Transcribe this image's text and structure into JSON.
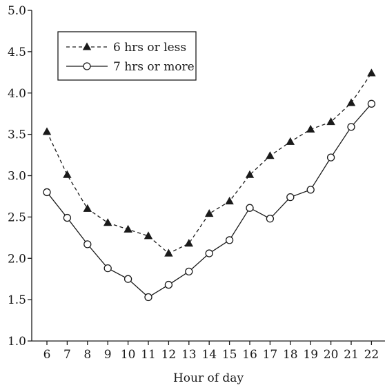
{
  "chart_data": {
    "type": "line",
    "title": "",
    "xlabel": "Hour of day",
    "ylabel": "",
    "x": [
      6,
      7,
      8,
      9,
      10,
      11,
      12,
      13,
      14,
      15,
      16,
      17,
      18,
      19,
      20,
      21,
      22
    ],
    "xlim": [
      5.5,
      22.2
    ],
    "ylim": [
      1.0,
      5.0
    ],
    "yticks": [
      1.0,
      1.5,
      2.0,
      2.5,
      3.0,
      3.5,
      4.0,
      4.5,
      5.0
    ],
    "ytick_labels": [
      "1.0",
      "1.5",
      "2.0",
      "2.5",
      "3.0",
      "3.5",
      "4.0",
      "4.5",
      "5.0"
    ],
    "xtick_labels": [
      "6",
      "7",
      "8",
      "9",
      "10",
      "11",
      "12",
      "13",
      "14",
      "15",
      "16",
      "17",
      "18",
      "19",
      "20",
      "21",
      "22"
    ],
    "grid": false,
    "legend_position": "top-left",
    "series": [
      {
        "name": "6 hrs or less",
        "line_style": "dashed",
        "marker": "filled-triangle",
        "color": "#1a1a1a",
        "values": [
          3.53,
          3.01,
          2.6,
          2.43,
          2.35,
          2.27,
          2.06,
          2.18,
          2.54,
          2.69,
          3.01,
          3.24,
          3.41,
          3.56,
          3.65,
          3.88,
          4.24
        ]
      },
      {
        "name": "7 hrs or more",
        "line_style": "solid",
        "marker": "open-circle",
        "color": "#1a1a1a",
        "values": [
          2.8,
          2.49,
          2.17,
          1.88,
          1.75,
          1.53,
          1.68,
          1.84,
          2.06,
          2.22,
          2.61,
          2.48,
          2.74,
          2.83,
          3.22,
          3.59,
          3.87
        ]
      }
    ]
  }
}
